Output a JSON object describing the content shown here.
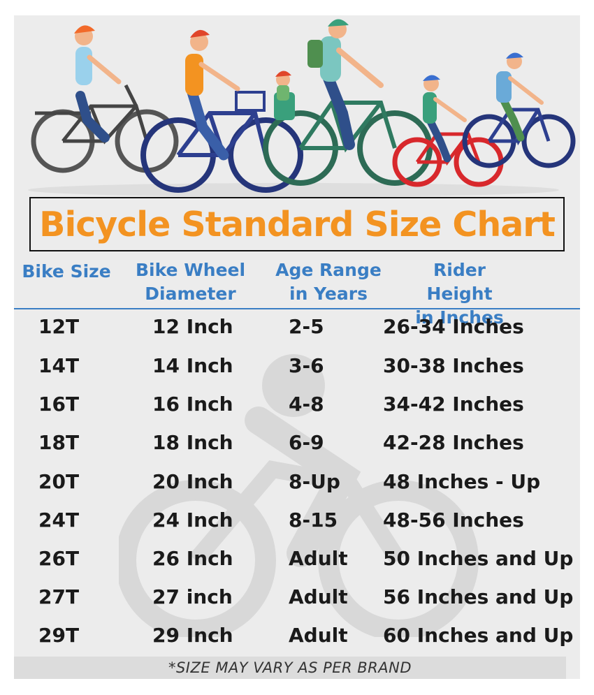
{
  "title": "Bicycle Standard Size Chart",
  "headers": {
    "size": [
      "Bike Size"
    ],
    "wheel": [
      "Bike Wheel",
      "Diameter"
    ],
    "age": [
      "Age Range",
      "in Years"
    ],
    "height": [
      "Rider Height",
      "in Inches"
    ]
  },
  "rows": [
    {
      "size": "12T",
      "wheel": "12 Inch",
      "age": "2-5",
      "height": "26-34 Inches"
    },
    {
      "size": "14T",
      "wheel": "14 Inch",
      "age": "3-6",
      "height": "30-38 Inches"
    },
    {
      "size": "16T",
      "wheel": "16 Inch",
      "age": "4-8",
      "height": "34-42 Inches"
    },
    {
      "size": "18T",
      "wheel": "18 Inch",
      "age": "6-9",
      "height": "42-28 Inches"
    },
    {
      "size": "20T",
      "wheel": "20 Inch",
      "age": "8-Up",
      "height": "48 Inches - Up"
    },
    {
      "size": "24T",
      "wheel": "24 Inch",
      "age": "8-15",
      "height": "48-56 Inches"
    },
    {
      "size": "26T",
      "wheel": "26 Inch",
      "age": "Adult",
      "height": "50 Inches and Up"
    },
    {
      "size": "27T",
      "wheel": "27 inch",
      "age": "Adult",
      "height": "56 Inches and Up"
    },
    {
      "size": "29T",
      "wheel": "29 Inch",
      "age": "Adult",
      "height": "60 Inches and Up"
    }
  ],
  "footer": "*SIZE MAY VARY AS PER BRAND",
  "colors": {
    "title": "#f39321",
    "header": "#3a7ec4",
    "text": "#1a1a1a",
    "background": "#ececec"
  },
  "illustration": "family-riding-bicycles"
}
